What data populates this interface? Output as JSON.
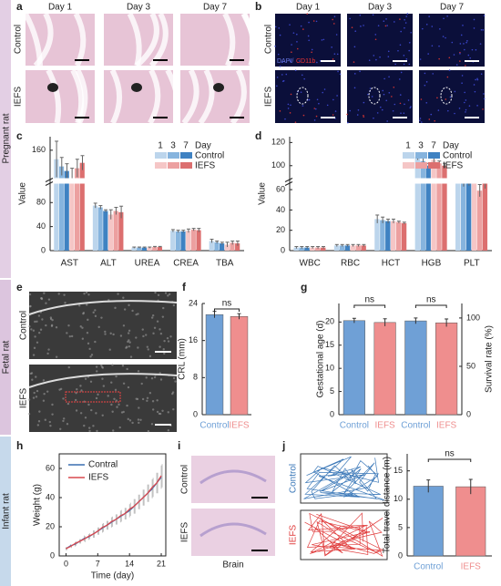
{
  "sections": [
    "Pregnant rat",
    "Fetal rat",
    "Infant rat"
  ],
  "panels": [
    "a",
    "b",
    "c",
    "d",
    "e",
    "f",
    "g",
    "h",
    "i",
    "j"
  ],
  "image_labels": {
    "days": [
      "Day 1",
      "Day 3",
      "Day 7"
    ],
    "groups": [
      "Control",
      "IEFS"
    ],
    "stain": [
      "DAPI/",
      "CD11b"
    ],
    "brain": "Brain"
  },
  "chart_data": [
    {
      "type": "grouped_bar",
      "y_label": "Value",
      "categories": [
        "AST",
        "ALT",
        "UREA",
        "CREA",
        "TBA"
      ],
      "legend_title": "Day",
      "days": [
        "1",
        "3",
        "7"
      ],
      "series": [
        {
          "name": "Control",
          "colors": [
            "#bcd5ec",
            "#86b4de",
            "#3f82c2"
          ],
          "values": [
            [
              150,
              75,
              5,
              33,
              16
            ],
            [
              142,
              72,
              5,
              32,
              14
            ],
            [
              137,
              66,
              5,
              32,
              12
            ]
          ],
          "errors": [
            [
              20,
              4,
              1,
              2,
              3
            ],
            [
              10,
              3,
              1,
              2,
              2
            ],
            [
              8,
              2,
              1,
              2,
              2
            ]
          ]
        },
        {
          "name": "IEFS",
          "colors": [
            "#f5c6c6",
            "#eca0a0",
            "#dc6f6f"
          ],
          "values": [
            [
              128,
              60,
              5,
              33,
              10
            ],
            [
              140,
              66,
              6,
              35,
              13
            ],
            [
              146,
              64,
              6,
              34,
              12
            ]
          ],
          "errors": [
            [
              12,
              8,
              1,
              3,
              4
            ],
            [
              10,
              6,
              1,
              2,
              3
            ],
            [
              8,
              10,
              1,
              3,
              4
            ]
          ]
        }
      ],
      "ylim": [
        0,
        175
      ],
      "ybreak": [
        110,
        130
      ],
      "yticks": [
        0,
        40,
        80,
        160
      ]
    },
    {
      "type": "grouped_bar",
      "y_label": "Value",
      "categories": [
        "WBC",
        "RBC",
        "HCT",
        "HGB",
        "PLT"
      ],
      "legend_title": "Day",
      "days": [
        "1",
        "3",
        "7"
      ],
      "series": [
        {
          "name": "Control",
          "colors": [
            "#bcd5ec",
            "#86b4de",
            "#3f82c2"
          ],
          "values": [
            [
              3,
              5,
              31,
              108,
              72
            ],
            [
              3,
              5,
              30,
              104,
              67
            ],
            [
              3,
              5,
              29,
              100,
              67
            ]
          ],
          "errors": [
            [
              1,
              1,
              4,
              3,
              5
            ],
            [
              1,
              1,
              3,
              3,
              4
            ],
            [
              1,
              1,
              2,
              2,
              3
            ]
          ]
        },
        {
          "name": "IEFS",
          "colors": [
            "#f5c6c6",
            "#eca0a0",
            "#dc6f6f"
          ],
          "values": [
            [
              3,
              5,
              29,
              105,
              72
            ],
            [
              3,
              5,
              28,
              102,
              59
            ],
            [
              3,
              5,
              27,
              100,
              66
            ]
          ],
          "errors": [
            [
              1,
              1,
              2,
              3,
              4
            ],
            [
              1,
              1,
              1,
              2,
              6
            ],
            [
              1,
              1,
              1,
              2,
              5
            ]
          ]
        }
      ],
      "ylim": [
        0,
        125
      ],
      "ybreak": [
        65,
        90
      ],
      "yticks": [
        0,
        20,
        40,
        60,
        100,
        120
      ]
    },
    {
      "type": "bar",
      "y_label": "CRL (mm)",
      "categories": [
        "Control",
        "IEFS"
      ],
      "values": [
        21.6,
        21.2
      ],
      "errors": [
        0.7,
        0.6
      ],
      "colors": [
        "#6fa0d6",
        "#ef8e8e"
      ],
      "ylim": [
        0,
        24
      ],
      "yticks": [
        0,
        8,
        16,
        24
      ],
      "annotations": [
        "ns"
      ]
    },
    {
      "type": "dual_bar",
      "y_label": "Gestational age (d)",
      "y2_label": "Survival rate (%)",
      "categories": [
        "Control",
        "IEFS"
      ],
      "colors": [
        "#6fa0d6",
        "#ef8e8e"
      ],
      "series": [
        {
          "values": [
            20.3,
            19.9
          ],
          "errors": [
            0.5,
            0.8
          ]
        },
        {
          "values": [
            97,
            95
          ],
          "errors": [
            3,
            4
          ],
          "axis": "y2"
        }
      ],
      "ylim": [
        0,
        24
      ],
      "yticks": [
        0,
        5,
        10,
        15,
        20
      ],
      "y2lim": [
        0,
        115
      ],
      "y2ticks": [
        0,
        50,
        100
      ],
      "annotations": [
        "ns",
        "ns"
      ]
    },
    {
      "type": "line",
      "x_label": "Time (day)",
      "y_label": "Weight (g)",
      "x": [
        0,
        1,
        2,
        3,
        4,
        5,
        6,
        7,
        8,
        9,
        10,
        11,
        12,
        13,
        14,
        15,
        16,
        17,
        18,
        19,
        20,
        21
      ],
      "series": [
        {
          "name": "Contral",
          "color": "#3a6fb0",
          "values": [
            5,
            7,
            8,
            10,
            12,
            13,
            15,
            17,
            19,
            21,
            23,
            25,
            27,
            29,
            31,
            34,
            37,
            40,
            43,
            46,
            50,
            54
          ],
          "errors": [
            1,
            1,
            1.5,
            1.5,
            2,
            2,
            2.5,
            2.5,
            3,
            3,
            3.5,
            3.5,
            4,
            4,
            4.5,
            5,
            5,
            5.5,
            6,
            6.5,
            7,
            8
          ]
        },
        {
          "name": "IEFS",
          "color": "#d9484f",
          "values": [
            5,
            6.5,
            8.5,
            10,
            11.5,
            13.5,
            15,
            17,
            19.5,
            21,
            23.5,
            25,
            27.5,
            29,
            32,
            34,
            37,
            40,
            43,
            47,
            50,
            55
          ],
          "errors": [
            1,
            1,
            1.5,
            1.5,
            2,
            2,
            2.5,
            2.5,
            3,
            3,
            3.5,
            3.5,
            4,
            4,
            4.5,
            5,
            5,
            5.5,
            6,
            6.5,
            7,
            8
          ]
        }
      ],
      "xlim": [
        -1.5,
        22
      ],
      "xticks": [
        0,
        7,
        14,
        21
      ],
      "ylim": [
        0,
        70
      ],
      "yticks": [
        0,
        20,
        40,
        60
      ]
    },
    {
      "type": "bar",
      "y_label": "Total travel distance (m)",
      "categories": [
        "Control",
        "IEFS"
      ],
      "values": [
        12.3,
        12.2
      ],
      "errors": [
        1.1,
        1.3
      ],
      "colors": [
        "#6fa0d6",
        "#ef8e8e"
      ],
      "ylim": [
        0,
        18
      ],
      "yticks": [
        0,
        5,
        10,
        15
      ],
      "annotations": [
        "ns"
      ]
    }
  ]
}
